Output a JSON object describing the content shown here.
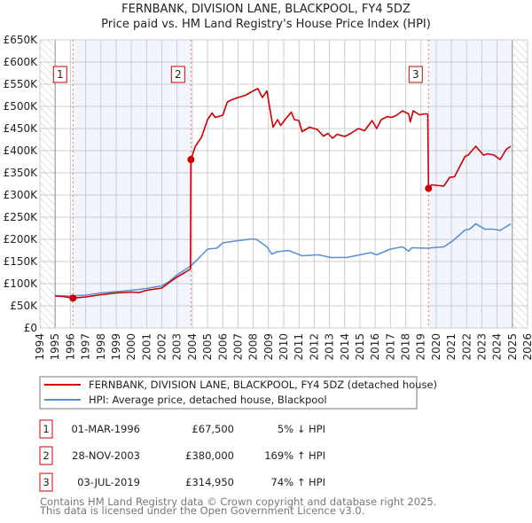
{
  "chart_data": {
    "type": "line",
    "title": "FERNBANK, DIVISION LANE, BLACKPOOL, FY4 5DZ",
    "subtitle": "Price paid vs. HM Land Registry's House Price Index (HPI)",
    "xlabel": "",
    "ylabel": "",
    "xlim": [
      1994,
      2026
    ],
    "ylim": [
      0,
      650000
    ],
    "grid": true,
    "x_ticks": [
      "1994",
      "1995",
      "1996",
      "1997",
      "1998",
      "1999",
      "2000",
      "2001",
      "2002",
      "2003",
      "2004",
      "2005",
      "2006",
      "2007",
      "2008",
      "2009",
      "2010",
      "2011",
      "2012",
      "2013",
      "2014",
      "2015",
      "2016",
      "2017",
      "2018",
      "2019",
      "2020",
      "2021",
      "2022",
      "2023",
      "2024",
      "2025",
      "2026"
    ],
    "y_ticks": [
      {
        "v": 0,
        "label": "£0"
      },
      {
        "v": 50000,
        "label": "£50K"
      },
      {
        "v": 100000,
        "label": "£100K"
      },
      {
        "v": 150000,
        "label": "£150K"
      },
      {
        "v": 200000,
        "label": "£200K"
      },
      {
        "v": 250000,
        "label": "£250K"
      },
      {
        "v": 300000,
        "label": "£300K"
      },
      {
        "v": 350000,
        "label": "£350K"
      },
      {
        "v": 400000,
        "label": "£400K"
      },
      {
        "v": 450000,
        "label": "£450K"
      },
      {
        "v": 500000,
        "label": "£500K"
      },
      {
        "v": 550000,
        "label": "£550K"
      },
      {
        "v": 600000,
        "label": "£600K"
      },
      {
        "v": 650000,
        "label": "£650K"
      }
    ],
    "hatched_ranges": [
      [
        1994,
        1995
      ],
      [
        2025,
        2026
      ]
    ],
    "shaded_ranges": [
      [
        1996.17,
        2003.91
      ],
      [
        2019.5,
        2025
      ]
    ],
    "series": [
      {
        "name": "FERNBANK, DIVISION LANE, BLACKPOOL, FY4 5DZ (detached house)",
        "color": "#cc0000",
        "x": [
          1995,
          1995.5,
          1996.17,
          1997,
          1998,
          1999,
          2000,
          2000.5,
          2001,
          2002,
          2002.5,
          2003,
          2003.5,
          2003.88,
          2003.91,
          2004.2,
          2004.6,
          2005,
          2005.3,
          2005.5,
          2006,
          2006.3,
          2006.6,
          2007,
          2007.5,
          2008,
          2008.3,
          2008.6,
          2008.9,
          2009.1,
          2009.3,
          2009.6,
          2009.8,
          2010.2,
          2010.5,
          2010.7,
          2011,
          2011.2,
          2011.7,
          2012.2,
          2012.6,
          2012.9,
          2013.2,
          2013.5,
          2014,
          2014.5,
          2014.9,
          2015.3,
          2015.8,
          2016.1,
          2016.4,
          2016.8,
          2017.1,
          2017.4,
          2017.8,
          2018.2,
          2018.3,
          2018.5,
          2018.9,
          2019.2,
          2019.45,
          2019.5,
          2019.7,
          2020.5,
          2020.9,
          2021.2,
          2021.9,
          2022.1,
          2022.6,
          2023.1,
          2023.4,
          2023.8,
          2024.2,
          2024.6,
          2024.9
        ],
        "y": [
          72000,
          71000,
          67500,
          70000,
          75000,
          79000,
          81000,
          80000,
          85000,
          90000,
          103000,
          115000,
          125000,
          133000,
          380000,
          410000,
          430000,
          470000,
          485000,
          475000,
          480000,
          510000,
          515000,
          520000,
          525000,
          535000,
          540000,
          520000,
          535000,
          493000,
          453000,
          470000,
          457000,
          475000,
          487000,
          470000,
          468000,
          443000,
          453000,
          448000,
          433000,
          439000,
          428000,
          437000,
          432000,
          441000,
          450000,
          445000,
          468000,
          450000,
          470000,
          477000,
          475000,
          480000,
          490000,
          483000,
          465000,
          490000,
          481000,
          483000,
          483000,
          314950,
          323000,
          320000,
          340000,
          341000,
          387000,
          390000,
          410000,
          390000,
          393000,
          390000,
          380000,
          403000,
          410000
        ]
      },
      {
        "name": "HPI: Average price, detached house, Blackpool",
        "color": "#5b8fd6",
        "x": [
          1995,
          1996,
          1997,
          1998,
          1999,
          2000,
          2001,
          2002,
          2002.5,
          2003,
          2003.9,
          2004.5,
          2005,
          2005.6,
          2006,
          2007,
          2008,
          2008.25,
          2008.9,
          2009.2,
          2009.6,
          2010.3,
          2011.2,
          2012.3,
          2013.1,
          2014.1,
          2015,
          2015.7,
          2016.1,
          2017,
          2017.8,
          2018.2,
          2018.4,
          2019.4,
          2020.5,
          2021.1,
          2021.9,
          2022.2,
          2022.6,
          2023.2,
          2023.8,
          2024.2,
          2024.9
        ],
        "y": [
          73000,
          72000,
          74000,
          79000,
          82000,
          85000,
          89000,
          95000,
          105000,
          120000,
          140000,
          160000,
          178000,
          180000,
          192000,
          197000,
          201000,
          199000,
          183000,
          167000,
          172000,
          175000,
          163000,
          165000,
          159000,
          159000,
          165000,
          170000,
          165000,
          178000,
          183000,
          173000,
          181000,
          180000,
          183000,
          197000,
          221000,
          223000,
          235000,
          223000,
          223000,
          220000,
          235000
        ]
      }
    ],
    "sales": [
      {
        "num": "1",
        "year": 1996.17,
        "price": 67500,
        "date": "01-MAR-1996",
        "price_label": "£67,500",
        "hpi": "5% ↓ HPI"
      },
      {
        "num": "2",
        "year": 2003.91,
        "price": 380000,
        "date": "28-NOV-2003",
        "price_label": "£380,000",
        "hpi": "169% ↑ HPI"
      },
      {
        "num": "3",
        "year": 2019.5,
        "price": 314950,
        "date": "03-JUL-2019",
        "price_label": "£314,950",
        "hpi": "74% ↑ HPI"
      }
    ],
    "legend_placement": "below"
  },
  "footer": {
    "line1": "Contains HM Land Registry data © Crown copyright and database right 2025.",
    "line2": "This data is licensed under the Open Government Licence v3.0."
  }
}
